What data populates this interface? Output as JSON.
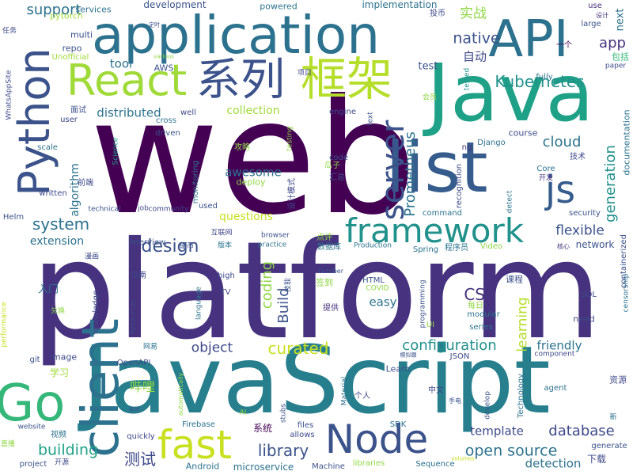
{
  "wordcloud": {
    "words": [
      {
        "text": "web",
        "color": "#440154"
      },
      {
        "text": "platform",
        "color": "#46327e"
      },
      {
        "text": "JavaScript",
        "color": "#277f8e"
      },
      {
        "text": "Java",
        "color": "#1fa187"
      },
      {
        "text": "application",
        "color": "#2c728e"
      },
      {
        "text": "list",
        "color": "#365c8d"
      },
      {
        "text": "API",
        "color": "#2c728e"
      },
      {
        "text": "React",
        "color": "#a0da39"
      },
      {
        "text": "系列",
        "color": "#3b528b"
      },
      {
        "text": "框架",
        "color": "#b5de2b"
      },
      {
        "text": "Python",
        "color": "#3b528b"
      },
      {
        "text": "client",
        "color": "#2c728e"
      },
      {
        "text": "Node",
        "color": "#3b528b"
      },
      {
        "text": "Go",
        "color": "#35b779"
      },
      {
        "text": "fast",
        "color": "#c8e020"
      },
      {
        "text": "framework",
        "color": "#21918c"
      },
      {
        "text": "server",
        "color": "#3b528b"
      },
      {
        "text": "js",
        "color": "#365c8d"
      },
      {
        "text": "Kubernetes",
        "color": "#21918c"
      },
      {
        "text": "Prometheus",
        "color": "#2c728e"
      },
      {
        "text": "design",
        "color": "#3b528b"
      },
      {
        "text": "system",
        "color": "#2c728e"
      },
      {
        "text": "support",
        "color": "#2c728e"
      },
      {
        "text": "native",
        "color": "#3b528b"
      },
      {
        "text": "app",
        "color": "#46327e"
      },
      {
        "text": "cloud",
        "color": "#2c728e"
      },
      {
        "text": "generation",
        "color": "#21918c"
      },
      {
        "text": "flexible",
        "color": "#3b528b"
      },
      {
        "text": "CSS",
        "color": "#46327e"
      },
      {
        "text": "curated",
        "color": "#c8e020"
      },
      {
        "text": "database",
        "color": "#3e4989"
      },
      {
        "text": "open source",
        "color": "#2c728e"
      },
      {
        "text": "configuration",
        "color": "#21918c"
      },
      {
        "text": "learning",
        "color": "#b5de2b"
      },
      {
        "text": "Build",
        "color": "#3b528b"
      },
      {
        "text": "coding",
        "color": "#8fd744"
      },
      {
        "text": "building",
        "color": "#1fa187"
      },
      {
        "text": "library",
        "color": "#3b528b"
      },
      {
        "text": "测试",
        "color": "#3e4989"
      },
      {
        "text": "object",
        "color": "#3e4989"
      },
      {
        "text": "template",
        "color": "#3e4989"
      },
      {
        "text": "detection",
        "color": "#2c728e"
      },
      {
        "text": "friendly",
        "color": "#2c728e"
      },
      {
        "text": "awesome",
        "color": "#2c728e"
      },
      {
        "text": "collection",
        "color": "#a0da39"
      },
      {
        "text": "distributed",
        "color": "#2c728e"
      },
      {
        "text": "algorithm",
        "color": "#2c728e"
      },
      {
        "text": "extension",
        "color": "#2c728e"
      },
      {
        "text": "questions",
        "color": "#c8e020"
      },
      {
        "text": "easy",
        "color": "#2c728e"
      },
      {
        "text": "哔哩",
        "color": "#8fd744"
      },
      {
        "text": "实战",
        "color": "#8fd744"
      },
      {
        "text": "自动",
        "color": "#3e4989"
      },
      {
        "text": "tool",
        "color": "#2c728e"
      },
      {
        "text": "test",
        "color": "#3b528b"
      },
      {
        "text": "multi",
        "color": "#3b528b"
      },
      {
        "text": "repo",
        "color": "#3b528b"
      },
      {
        "text": "pytorch",
        "color": "#a0da39"
      },
      {
        "text": "services",
        "color": "#2c728e"
      },
      {
        "text": "development",
        "color": "#3b528b"
      },
      {
        "text": "powered",
        "color": "#2c728e"
      },
      {
        "text": "implementation",
        "color": "#2c728e"
      },
      {
        "text": "投币",
        "color": "#3e4989"
      },
      {
        "text": "任务",
        "color": "#3e4989"
      },
      {
        "text": "use",
        "color": "#46327e"
      },
      {
        "text": "设计",
        "color": "#46327e"
      },
      {
        "text": "large",
        "color": "#3b528b"
      },
      {
        "text": "next",
        "color": "#2c728e"
      },
      {
        "text": "一个",
        "color": "#440154"
      },
      {
        "text": "包括",
        "color": "#35b779"
      },
      {
        "text": "paper",
        "color": "#3e4989"
      },
      {
        "text": "AWS",
        "color": "#3b528b"
      },
      {
        "text": "Unofficial",
        "color": "#a0da39"
      },
      {
        "text": "WhatsAppSite",
        "color": "#3e4989"
      },
      {
        "text": "项目",
        "color": "#3e4989"
      },
      {
        "text": "tested",
        "color": "#21918c"
      },
      {
        "text": "fully",
        "color": "#2c728e"
      },
      {
        "text": "面试",
        "color": "#3b528b"
      },
      {
        "text": "user",
        "color": "#3e4989"
      },
      {
        "text": "cross",
        "color": "#2c728e"
      },
      {
        "text": "well",
        "color": "#3e4989"
      },
      {
        "text": "engine",
        "color": "#3e4989"
      },
      {
        "text": "text",
        "color": "#3b528b"
      },
      {
        "text": "course",
        "color": "#3e4989"
      },
      {
        "text": "documentation",
        "color": "#2c728e"
      },
      {
        "text": "会员",
        "color": "#8fd744"
      },
      {
        "text": "driven",
        "color": "#3b528b"
      },
      {
        "text": "ng",
        "color": "#46327e"
      },
      {
        "text": "Django",
        "color": "#2c728e"
      },
      {
        "text": "recognition",
        "color": "#3e4989"
      },
      {
        "text": "攻略",
        "color": "#8fd744"
      },
      {
        "text": "scale",
        "color": "#2c728e"
      },
      {
        "text": "Science",
        "color": "#1fa187"
      },
      {
        "text": "testing",
        "color": "#8fd744"
      },
      {
        "text": "瓜子",
        "color": "#8fd744"
      },
      {
        "text": "汇总",
        "color": "#3b528b"
      },
      {
        "text": "code",
        "color": "#3b528b"
      },
      {
        "text": "技术",
        "color": "#3e4989"
      },
      {
        "text": "Core",
        "color": "#2c728e"
      },
      {
        "text": "开发",
        "color": "#46327e"
      },
      {
        "text": "前端",
        "color": "#3e4989"
      },
      {
        "text": "written",
        "color": "#3e4989"
      },
      {
        "text": "deploy",
        "color": "#8fd744"
      },
      {
        "text": "设计模式",
        "color": "#3e4989"
      },
      {
        "text": "detect",
        "color": "#2c728e"
      },
      {
        "text": "monitoring",
        "color": "#2c728e"
      },
      {
        "text": "Helm",
        "color": "#3b528b"
      },
      {
        "text": "technical",
        "color": "#3b528b"
      },
      {
        "text": "job",
        "color": "#3e4989"
      },
      {
        "text": "community",
        "color": "#3e4989"
      },
      {
        "text": "used",
        "color": "#3b528b"
      },
      {
        "text": "command",
        "color": "#2c728e"
      },
      {
        "text": "security",
        "color": "#3b528b"
      },
      {
        "text": "containerized",
        "color": "#3b528b"
      },
      {
        "text": "互联网",
        "color": "#3e4989"
      },
      {
        "text": "browser",
        "color": "#3b528b"
      },
      {
        "text": "practice",
        "color": "#2c728e"
      },
      {
        "text": "版本",
        "color": "#2c728e"
      },
      {
        "text": "硬币",
        "color": "#3b528b"
      },
      {
        "text": "interview",
        "color": "#3b528b"
      },
      {
        "text": "数据库",
        "color": "#2c728e"
      },
      {
        "text": "点评",
        "color": "#8fd744"
      },
      {
        "text": "Production",
        "color": "#2c728e"
      },
      {
        "text": "Spring",
        "color": "#2c728e"
      },
      {
        "text": "程序员",
        "color": "#2c728e"
      },
      {
        "text": "Video",
        "color": "#8fd744"
      },
      {
        "text": "核心",
        "color": "#46327e"
      },
      {
        "text": "network",
        "color": "#3b528b"
      },
      {
        "text": "漫画",
        "color": "#3e4989"
      },
      {
        "text": "指南",
        "color": "#3e4989"
      },
      {
        "text": "high",
        "color": "#3e4989"
      },
      {
        "text": "技能",
        "color": "#3b528b"
      },
      {
        "text": "签到",
        "color": "#8fd744"
      },
      {
        "text": "October",
        "color": "#3b528b"
      },
      {
        "text": "HTML",
        "color": "#3b528b"
      },
      {
        "text": "课程",
        "color": "#3b528b"
      },
      {
        "text": "入门",
        "color": "#2c728e"
      },
      {
        "text": "TV",
        "color": "#3e4989"
      },
      {
        "text": "COVID",
        "color": "#8fd744"
      },
      {
        "text": "每日",
        "color": "#8fd744"
      },
      {
        "text": "SQL",
        "color": "#3e4989"
      },
      {
        "text": "censorship",
        "color": "#2c728e"
      },
      {
        "text": "兑换",
        "color": "#8fd744"
      },
      {
        "text": "language",
        "color": "#2c728e"
      },
      {
        "text": "提供",
        "color": "#46327e"
      },
      {
        "text": "programming",
        "color": "#3b528b"
      },
      {
        "text": "modular",
        "color": "#2c728e"
      },
      {
        "text": "need",
        "color": "#3e4989"
      },
      {
        "text": "knowledge",
        "color": "#3e4989"
      },
      {
        "text": "Resources",
        "color": "#3e4989"
      },
      {
        "text": "UI",
        "color": "#8fd744"
      },
      {
        "text": "series",
        "color": "#2c728e"
      },
      {
        "text": "performance",
        "color": "#c8e020"
      },
      {
        "text": "image",
        "color": "#3e4989"
      },
      {
        "text": "网易",
        "color": "#2c728e"
      },
      {
        "text": "git",
        "color": "#3b528b"
      },
      {
        "text": "学习",
        "color": "#a0da39"
      },
      {
        "text": "OpenAPI",
        "color": "#3e4989"
      },
      {
        "text": "component",
        "color": "#3e4989"
      },
      {
        "text": "JSON",
        "color": "#3e4989"
      },
      {
        "text": "模拟器",
        "color": "#3b528b"
      },
      {
        "text": "资源",
        "color": "#3e4989"
      },
      {
        "text": "Learn",
        "color": "#3b528b"
      },
      {
        "text": "agent",
        "color": "#2c728e"
      },
      {
        "text": "automatically",
        "color": "#8fd744"
      },
      {
        "text": "Material",
        "color": "#2c728e"
      },
      {
        "text": "中文",
        "color": "#3e4989"
      },
      {
        "text": "个人",
        "color": "#3e4989"
      },
      {
        "text": "develop",
        "color": "#3b528b"
      },
      {
        "text": "Technology",
        "color": "#2c728e"
      },
      {
        "text": "手电",
        "color": "#3b528b"
      },
      {
        "text": "装修",
        "color": "#3b528b"
      },
      {
        "text": "website",
        "color": "#3b528b"
      },
      {
        "text": "视频",
        "color": "#2c728e"
      },
      {
        "text": "AI",
        "color": "#8fd744"
      },
      {
        "text": "stubs",
        "color": "#3b528b"
      },
      {
        "text": "Firebase",
        "color": "#2c728e"
      },
      {
        "text": "files",
        "color": "#3b528b"
      },
      {
        "text": "SDK",
        "color": "#2c728e"
      },
      {
        "text": "系统",
        "color": "#440154"
      },
      {
        "text": "allows",
        "color": "#3e4989"
      },
      {
        "text": "quickly",
        "color": "#3e4989"
      },
      {
        "text": "新",
        "color": "#2c728e"
      },
      {
        "text": "下载",
        "color": "#3e4989"
      },
      {
        "text": "generate",
        "color": "#3b528b"
      },
      {
        "text": "直播",
        "color": "#8fd744"
      },
      {
        "text": "project",
        "color": "#3b528b"
      },
      {
        "text": "开源",
        "color": "#3e4989"
      },
      {
        "text": "Android",
        "color": "#2c728e"
      },
      {
        "text": "microservice",
        "color": "#2c728e"
      },
      {
        "text": "Machine",
        "color": "#3b528b"
      },
      {
        "text": "libraries",
        "color": "#8fd744"
      },
      {
        "text": "Sequence",
        "color": "#2c728e"
      },
      {
        "text": "volumes",
        "color": "#c8e020"
      },
      {
        "text": "定时",
        "color": "#3b528b"
      },
      {
        "text": "various",
        "color": "#8fd744"
      }
    ]
  }
}
